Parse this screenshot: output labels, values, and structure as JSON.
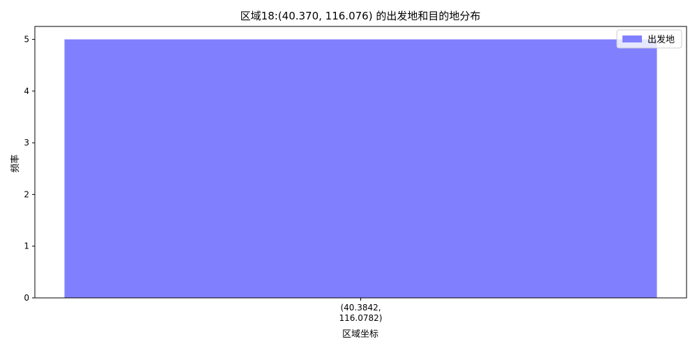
{
  "chart_data": {
    "type": "bar",
    "title": "区域18:(40.370, 116.076) 的出发地和目的地分布",
    "xlabel": "区域坐标",
    "ylabel": "频率",
    "categories": [
      [
        "(40.3842,",
        "116.0782)"
      ]
    ],
    "series": [
      {
        "name": "出发地",
        "values": [
          5
        ],
        "color": "#8080ff"
      }
    ],
    "ylim": [
      0,
      5.25
    ],
    "yticks": [
      0,
      1,
      2,
      3,
      4,
      5
    ],
    "grid": false,
    "legend": "top-right"
  }
}
